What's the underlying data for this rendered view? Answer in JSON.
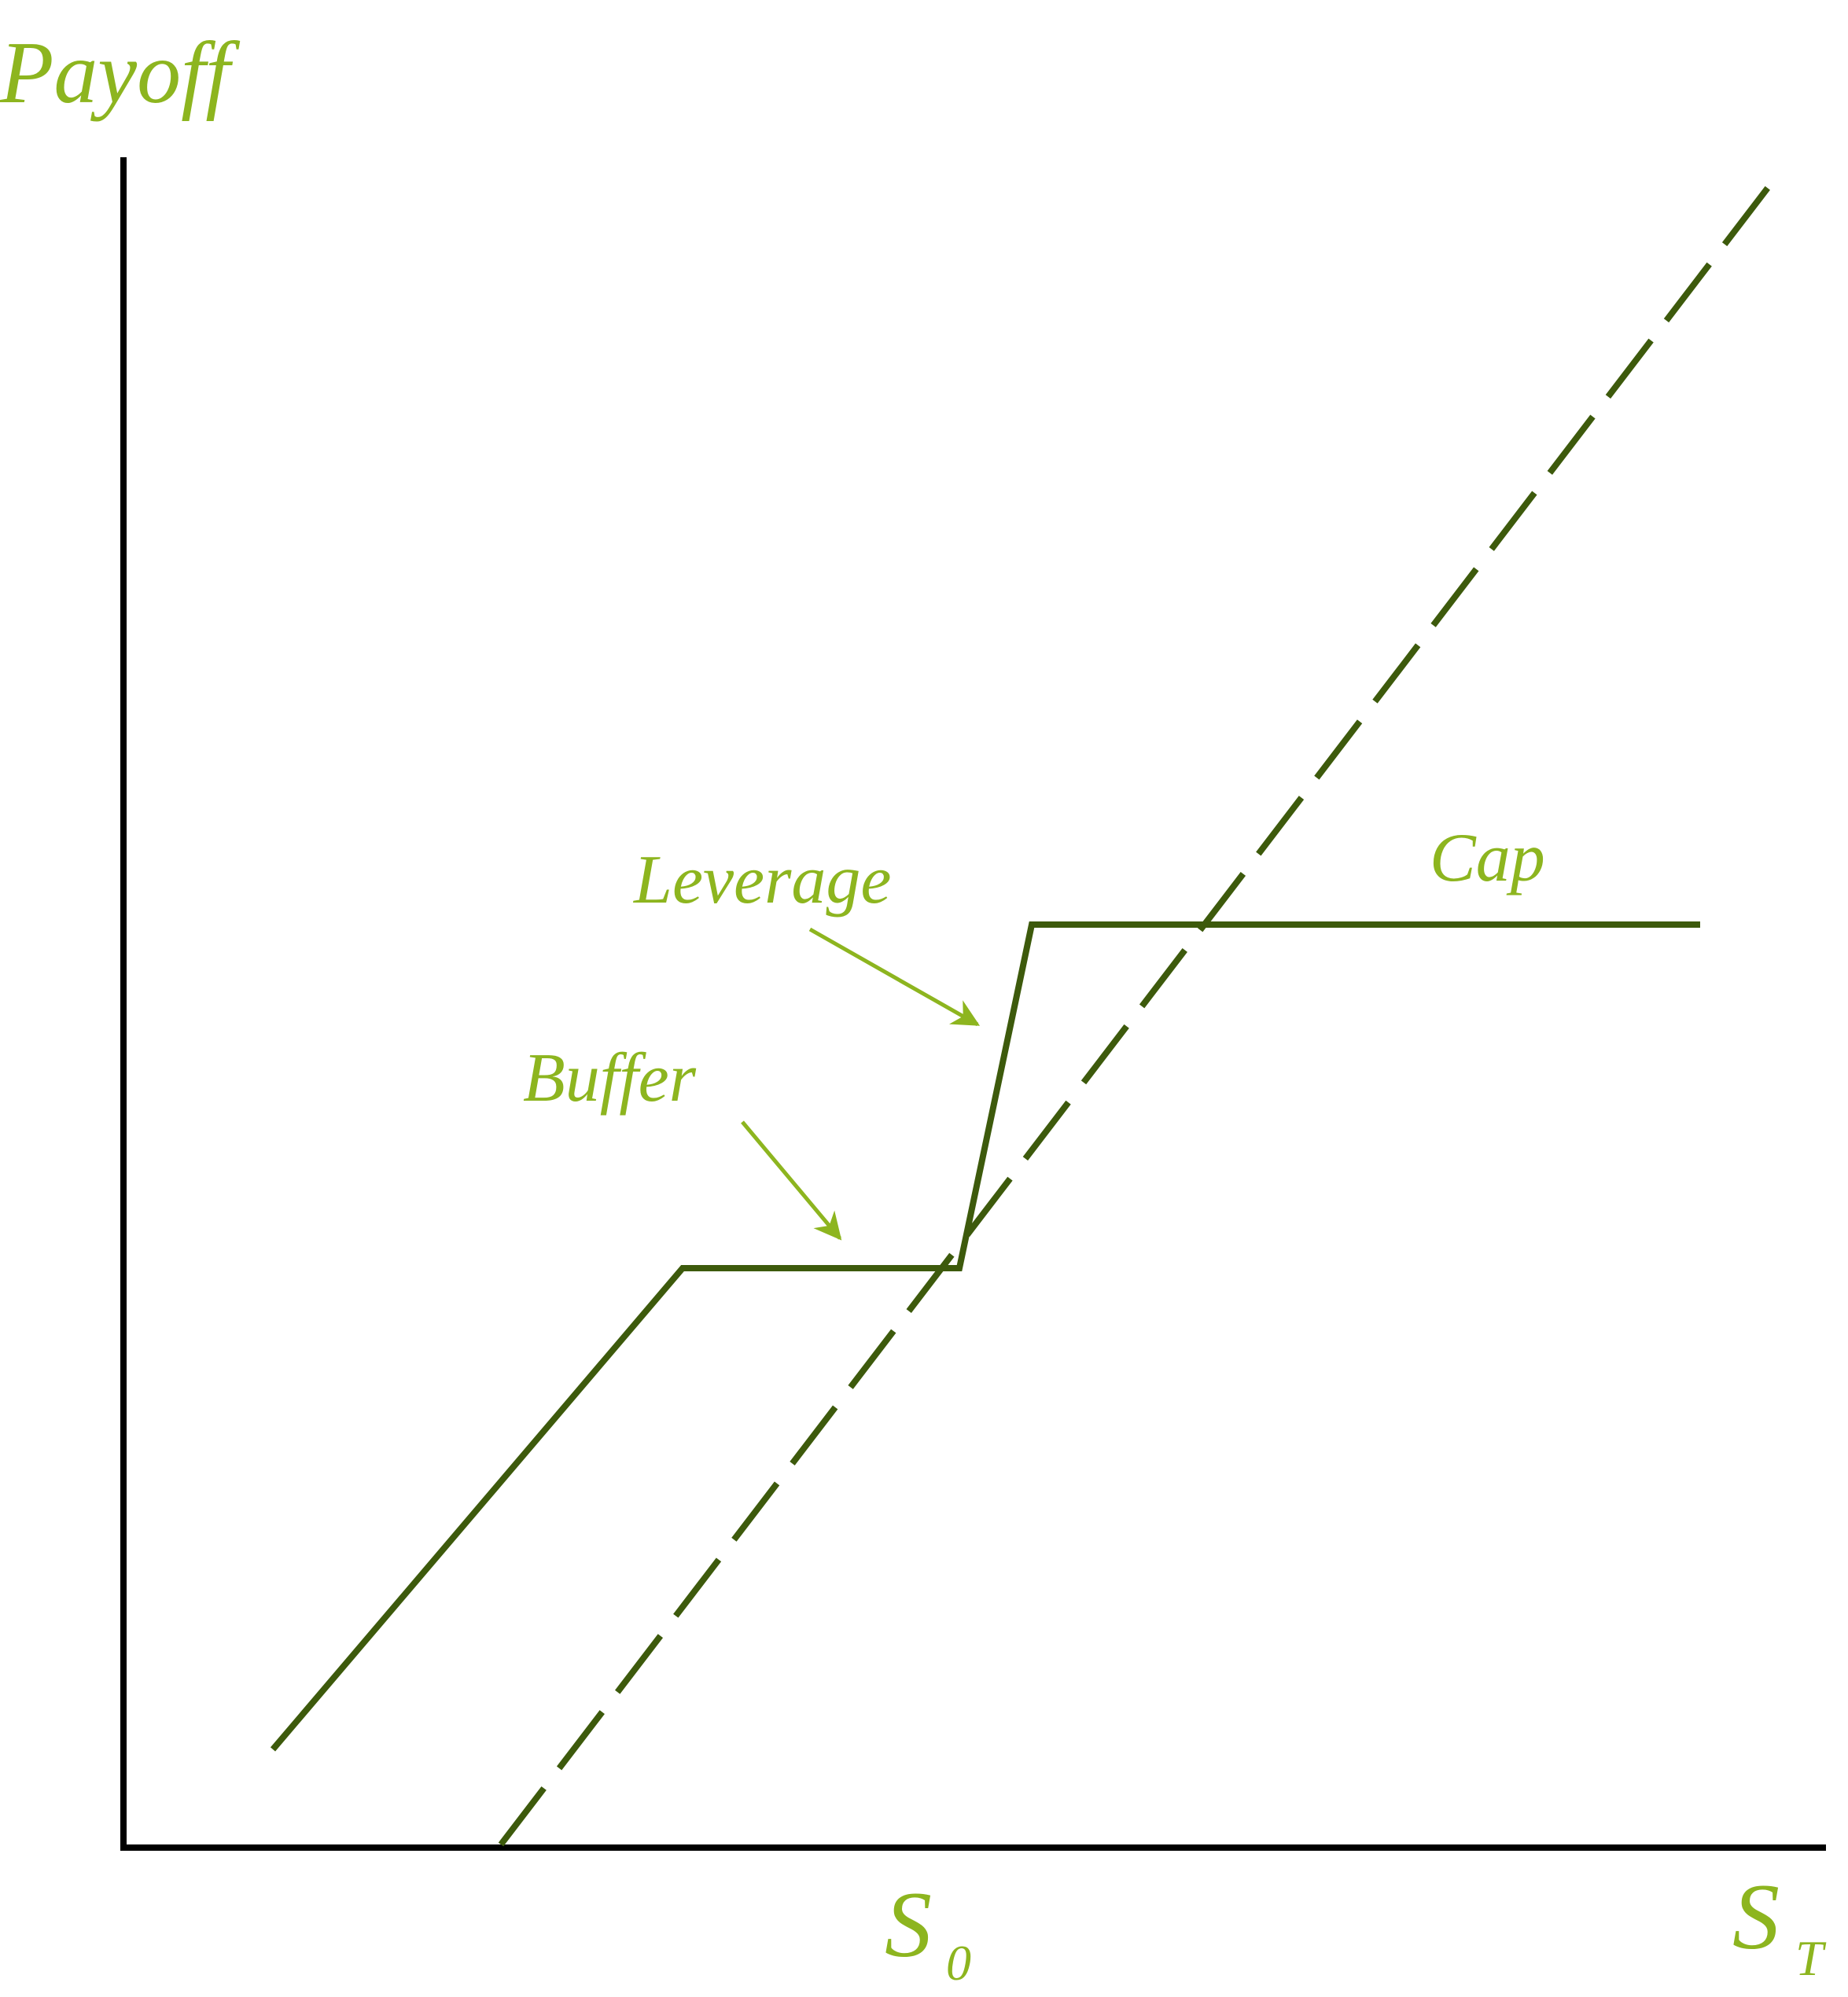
{
  "labels": {
    "y_axis": "Payoff",
    "x_axis_main": "S",
    "x_axis_sub": "T",
    "s0_main": "S",
    "s0_sub": "0",
    "leverage": "Leverage",
    "buffer": "Buffer",
    "cap": "Cap"
  },
  "colors": {
    "label": "#8db51f",
    "payoff_line": "#3d5a0c",
    "axis": "#000000",
    "background": "#ffffff"
  }
}
